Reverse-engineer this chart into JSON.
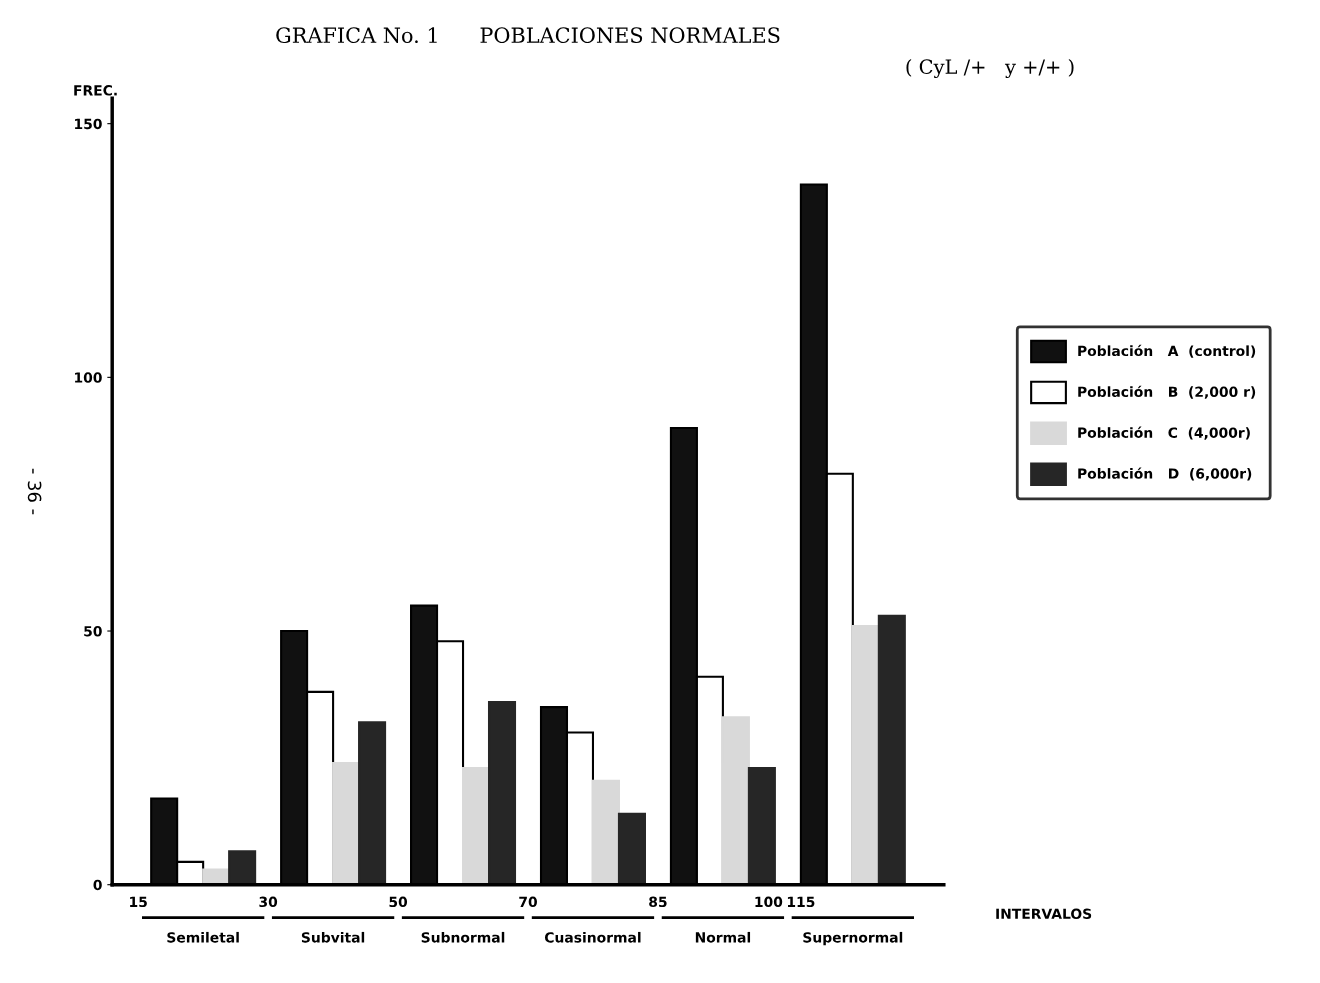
{
  "chart_data": {
    "type": "bar",
    "title": "GRAFICA No. 1      POBLACIONES NORMALES",
    "subtitle": "( CyL /+   y +/+ )",
    "xlabel": "INTERVALOS",
    "ylabel": "FREC.",
    "categories": [
      "Semiletal",
      "Subvital",
      "Subnormal",
      "Cuasinormal",
      "Normal",
      "Supernormal"
    ],
    "series": [
      {
        "name": "Población   A  (control)",
        "color": "#111111",
        "values": [
          17,
          50,
          55,
          35,
          90,
          138
        ]
      },
      {
        "name": "Población   B  (2,000 r)",
        "color": "#ffffff",
        "values": [
          4.5,
          38,
          48,
          30,
          41,
          81
        ]
      },
      {
        "name": "Población   C  (4,000r)",
        "color": "#d9d9d9",
        "values": [
          3,
          24,
          23,
          20.5,
          33,
          51
        ]
      },
      {
        "name": "Población   D  (6,000r)",
        "color": "#262626",
        "values": [
          6.6,
          32,
          36,
          14,
          23,
          53
        ]
      }
    ],
    "ylim": [
      0,
      155
    ],
    "yticks": [
      0,
      50,
      100,
      150
    ],
    "grid": false,
    "legend": "right",
    "annotations": [
      "15",
      "30",
      "50",
      "70",
      "85",
      "100",
      "115",
      "- 36 -"
    ]
  }
}
